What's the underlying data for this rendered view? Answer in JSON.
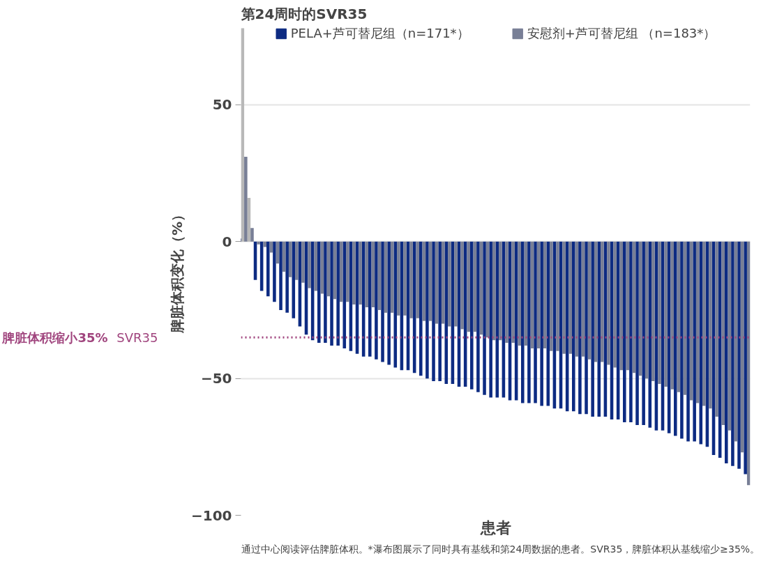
{
  "chart_data": {
    "type": "bar",
    "title": "第24周时的SVR35",
    "xlabel": "患者",
    "ylabel": "脾脏体积变化（%）",
    "categories": [
      null,
      null,
      null,
      null,
      null,
      null,
      null,
      null,
      null,
      null,
      null,
      null,
      null,
      null,
      null,
      null,
      null,
      null,
      null,
      null,
      null,
      null,
      null,
      null,
      null,
      null,
      null,
      null,
      null,
      null,
      null,
      null,
      null,
      null,
      null,
      null,
      null,
      null,
      null,
      null,
      null,
      null,
      null,
      null,
      null,
      null,
      null,
      null,
      null,
      null,
      null,
      null,
      null,
      null,
      null,
      null,
      null,
      null,
      null,
      null,
      null,
      null,
      null,
      null,
      null,
      null,
      null,
      null,
      null,
      null,
      null,
      null,
      null,
      null,
      null,
      null,
      null,
      null,
      null,
      null
    ],
    "series": [
      {
        "name": "PELA+芦可替尼组（n=171*）",
        "color": "#0d2b82",
        "colors": [
          "#b8b8b8",
          "#b8b8b8",
          "#0d2b82",
          "#0d2b82",
          "#0d2b82",
          "#0d2b82",
          "#0d2b82",
          "#0d2b82",
          "#0d2b82",
          "#0d2b82",
          "#0d2b82",
          "#0d2b82",
          "#0d2b82",
          "#0d2b82",
          "#0d2b82",
          "#0d2b82",
          "#0d2b82",
          "#0d2b82",
          "#0d2b82",
          "#0d2b82",
          "#0d2b82",
          "#0d2b82",
          "#0d2b82",
          "#0d2b82",
          "#0d2b82",
          "#0d2b82",
          "#0d2b82",
          "#0d2b82",
          "#0d2b82",
          "#0d2b82",
          "#0d2b82",
          "#0d2b82",
          "#0d2b82",
          "#0d2b82",
          "#0d2b82",
          "#0d2b82",
          "#0d2b82",
          "#0d2b82",
          "#0d2b82",
          "#0d2b82",
          "#0d2b82",
          "#0d2b82",
          "#0d2b82",
          "#0d2b82",
          "#0d2b82",
          "#0d2b82",
          "#0d2b82",
          "#0d2b82",
          "#0d2b82",
          "#0d2b82",
          "#0d2b82",
          "#0d2b82",
          "#0d2b82",
          "#0d2b82",
          "#0d2b82",
          "#0d2b82",
          "#0d2b82",
          "#0d2b82",
          "#0d2b82",
          "#0d2b82",
          "#0d2b82",
          "#0d2b82",
          "#0d2b82",
          "#0d2b82",
          "#0d2b82",
          "#0d2b82",
          "#0d2b82",
          "#0d2b82",
          "#0d2b82",
          "#0d2b82",
          "#0d2b82",
          "#0d2b82",
          "#0d2b82",
          "#0d2b82",
          "#0d2b82",
          "#0d2b82",
          "#0d2b82",
          "#0d2b82",
          "#0d2b82",
          "#0d2b82"
        ],
        "values": [
          78,
          16,
          -14,
          -18,
          -20,
          -22,
          -25,
          -26,
          -28,
          -31,
          -34,
          -36,
          -37,
          -37,
          -38,
          -38,
          -39,
          -40,
          -41,
          -42,
          -42,
          -43,
          -44,
          -45,
          -46,
          -47,
          -47,
          -48,
          -49,
          -50,
          -51,
          -51,
          -52,
          -52,
          -53,
          -53,
          -54,
          -55,
          -56,
          -57,
          -57,
          -57,
          -58,
          -58,
          -59,
          -59,
          -59,
          -60,
          -60,
          -61,
          -61,
          -62,
          -62,
          -63,
          -63,
          -64,
          -64,
          -64,
          -65,
          -65,
          -66,
          -66,
          -67,
          -67,
          -68,
          -69,
          -69,
          -70,
          -71,
          -72,
          -73,
          -73,
          -74,
          -75,
          -78,
          -79,
          -81,
          -82,
          -83,
          -85
        ]
      },
      {
        "name": "安慰剂+芦可替尼组 （n=183*）",
        "color": "#787f96",
        "values": [
          31,
          5,
          -1,
          -2,
          -4,
          -8,
          -11,
          -13,
          -14,
          -15,
          -17,
          -18,
          -19,
          -20,
          -21,
          -22,
          -22,
          -23,
          -23,
          -24,
          -24,
          -25,
          -26,
          -26,
          -27,
          -27,
          -28,
          -28,
          -29,
          -29,
          -30,
          -30,
          -31,
          -31,
          -32,
          -33,
          -33,
          -34,
          -35,
          -36,
          -36,
          -37,
          -37,
          -38,
          -38,
          -39,
          -39,
          -39,
          -40,
          -40,
          -41,
          -41,
          -42,
          -42,
          -43,
          -44,
          -44,
          -45,
          -46,
          -47,
          -47,
          -48,
          -49,
          -50,
          -51,
          -52,
          -53,
          -54,
          -55,
          -56,
          -58,
          -59,
          -60,
          -61,
          -64,
          -67,
          -69,
          -73,
          -77,
          -89
        ]
      }
    ],
    "ylim": [
      -100,
      79
    ],
    "yticks": [
      -100,
      -50,
      0,
      50
    ],
    "grid": "y",
    "legend": "top",
    "tick_labels": "y",
    "ref_lines": [
      {
        "axis": "y",
        "value": -35,
        "label": "SVR35",
        "color": "#a0457e",
        "line_style": "dotted"
      }
    ],
    "annotations": [
      "脾脏体积缩小35%",
      "通过中心阅读评估脾脏体积。*瀑布图展示了同时具有基线和第24周数据的患者。SVR35，脾脏体积从基线缩少≥35%。"
    ]
  }
}
